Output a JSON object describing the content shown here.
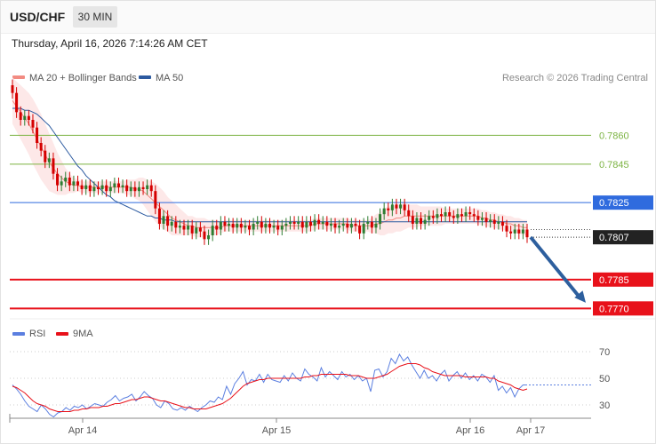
{
  "header": {
    "symbol": "USD/CHF",
    "timeframe": "30 MIN"
  },
  "timestamp": "Thursday, April 16, 2026 7:14:26 AM CET",
  "legend": {
    "items": [
      {
        "label": "MA 20 + Bollinger Bands",
        "color": "#f28b82"
      },
      {
        "label": "MA 50",
        "color": "#2c5aa0"
      }
    ],
    "copyright": "Research © 2026 Trading Central"
  },
  "rsi_legend": {
    "items": [
      {
        "label": "RSI",
        "color": "#5b7fe0"
      },
      {
        "label": "9MA",
        "color": "#e8111a"
      }
    ]
  },
  "chart_data": [
    {
      "type": "candlestick",
      "ylim": [
        0.7766,
        0.7886
      ],
      "x_ticks": [
        "Apr 14",
        "Apr 15",
        "Apr 16",
        "Apr 17"
      ],
      "candles": [
        [
          0.7886,
          0.7882
        ],
        [
          0.7882,
          0.7872
        ],
        [
          0.7872,
          0.7868
        ],
        [
          0.7868,
          0.787
        ],
        [
          0.787,
          0.7868
        ],
        [
          0.7868,
          0.7864
        ],
        [
          0.7864,
          0.7856
        ],
        [
          0.7856,
          0.7852
        ],
        [
          0.7852,
          0.7846
        ],
        [
          0.7846,
          0.7848
        ],
        [
          0.7848,
          0.784
        ],
        [
          0.784,
          0.7834
        ],
        [
          0.7834,
          0.7836
        ],
        [
          0.7836,
          0.7838
        ],
        [
          0.7838,
          0.7834
        ],
        [
          0.7834,
          0.7836
        ],
        [
          0.7836,
          0.7834
        ],
        [
          0.7834,
          0.7832
        ],
        [
          0.7832,
          0.7834
        ],
        [
          0.7834,
          0.7831
        ],
        [
          0.7831,
          0.7833
        ],
        [
          0.7833,
          0.7832
        ],
        [
          0.7832,
          0.7834
        ],
        [
          0.7834,
          0.7831
        ],
        [
          0.7831,
          0.7833
        ],
        [
          0.7833,
          0.7835
        ],
        [
          0.7835,
          0.7833
        ],
        [
          0.7833,
          0.7834
        ],
        [
          0.7834,
          0.7831
        ],
        [
          0.7831,
          0.7833
        ],
        [
          0.7833,
          0.7831
        ],
        [
          0.7831,
          0.7833
        ],
        [
          0.7833,
          0.7832
        ],
        [
          0.7832,
          0.7834
        ],
        [
          0.7834,
          0.7831
        ],
        [
          0.7831,
          0.7822
        ],
        [
          0.7822,
          0.7814
        ],
        [
          0.7814,
          0.7818
        ],
        [
          0.7818,
          0.7813
        ],
        [
          0.7813,
          0.7815
        ],
        [
          0.7815,
          0.7812
        ],
        [
          0.7812,
          0.7813
        ],
        [
          0.7813,
          0.7811
        ],
        [
          0.7811,
          0.7813
        ],
        [
          0.7813,
          0.7809
        ],
        [
          0.7809,
          0.7812
        ],
        [
          0.7812,
          0.781
        ],
        [
          0.781,
          0.7806
        ],
        [
          0.7806,
          0.7808
        ],
        [
          0.7808,
          0.7813
        ],
        [
          0.7813,
          0.7811
        ],
        [
          0.7811,
          0.7815
        ],
        [
          0.7815,
          0.7813
        ],
        [
          0.7813,
          0.7814
        ],
        [
          0.7814,
          0.7812
        ],
        [
          0.7812,
          0.7814
        ],
        [
          0.7814,
          0.7812
        ],
        [
          0.7812,
          0.7813
        ],
        [
          0.7813,
          0.7811
        ],
        [
          0.7811,
          0.7814
        ],
        [
          0.7814,
          0.7815
        ],
        [
          0.7815,
          0.7812
        ],
        [
          0.7812,
          0.7814
        ],
        [
          0.7814,
          0.7812
        ],
        [
          0.7812,
          0.7813
        ],
        [
          0.7813,
          0.7811
        ],
        [
          0.7811,
          0.7813
        ],
        [
          0.7813,
          0.7814
        ],
        [
          0.7814,
          0.7815
        ],
        [
          0.7815,
          0.7814
        ],
        [
          0.7814,
          0.7815
        ],
        [
          0.7815,
          0.7812
        ],
        [
          0.7812,
          0.7815
        ],
        [
          0.7815,
          0.7813
        ],
        [
          0.7813,
          0.7816
        ],
        [
          0.7816,
          0.7814
        ],
        [
          0.7814,
          0.7815
        ],
        [
          0.7815,
          0.7813
        ],
        [
          0.7813,
          0.7814
        ],
        [
          0.7814,
          0.7812
        ],
        [
          0.7812,
          0.7813
        ],
        [
          0.7813,
          0.7814
        ],
        [
          0.7814,
          0.7812
        ],
        [
          0.7812,
          0.7814
        ],
        [
          0.7814,
          0.7813
        ],
        [
          0.7813,
          0.7809
        ],
        [
          0.7809,
          0.7814
        ],
        [
          0.7814,
          0.7815
        ],
        [
          0.7815,
          0.7812
        ],
        [
          0.7812,
          0.7814
        ],
        [
          0.7814,
          0.7819
        ],
        [
          0.7819,
          0.7822
        ],
        [
          0.7822,
          0.7821
        ],
        [
          0.7821,
          0.7824
        ],
        [
          0.7824,
          0.7822
        ],
        [
          0.7822,
          0.7824
        ],
        [
          0.7824,
          0.7821
        ],
        [
          0.7821,
          0.7818
        ],
        [
          0.7818,
          0.7814
        ],
        [
          0.7814,
          0.7817
        ],
        [
          0.7817,
          0.7814
        ],
        [
          0.7814,
          0.7816
        ],
        [
          0.7816,
          0.7818
        ],
        [
          0.7818,
          0.7817
        ],
        [
          0.7817,
          0.7819
        ],
        [
          0.7819,
          0.7818
        ],
        [
          0.7818,
          0.782
        ],
        [
          0.782,
          0.7818
        ],
        [
          0.7818,
          0.7817
        ],
        [
          0.7817,
          0.7819
        ],
        [
          0.7819,
          0.7818
        ],
        [
          0.7818,
          0.782
        ],
        [
          0.782,
          0.7819
        ],
        [
          0.7819,
          0.7818
        ],
        [
          0.7818,
          0.7816
        ],
        [
          0.7816,
          0.7817
        ],
        [
          0.7817,
          0.7815
        ],
        [
          0.7815,
          0.7816
        ],
        [
          0.7816,
          0.7814
        ],
        [
          0.7814,
          0.7815
        ],
        [
          0.7815,
          0.7813
        ],
        [
          0.7813,
          0.781
        ],
        [
          0.781,
          0.7809
        ],
        [
          0.7809,
          0.7811
        ],
        [
          0.7811,
          0.7809
        ],
        [
          0.7809,
          0.7811
        ],
        [
          0.7811,
          0.7807
        ]
      ],
      "ma20": [
        0.7878,
        0.7875,
        0.7872,
        0.7869,
        0.7866,
        0.7862,
        0.7858,
        0.7854,
        0.785,
        0.7846,
        0.7843,
        0.784,
        0.7838,
        0.7836,
        0.7835,
        0.7834,
        0.7834,
        0.7833,
        0.7833,
        0.7833,
        0.7833,
        0.7833,
        0.7833,
        0.7833,
        0.7833,
        0.7833,
        0.7833,
        0.7833,
        0.7833,
        0.7833,
        0.7832,
        0.7832,
        0.7831,
        0.7829,
        0.7827,
        0.7825,
        0.7823,
        0.7821,
        0.7819,
        0.7817,
        0.7816,
        0.7815,
        0.7814,
        0.7813,
        0.7813,
        0.7812,
        0.7812,
        0.7812,
        0.7812,
        0.7812,
        0.7812,
        0.7812,
        0.7813,
        0.7813,
        0.7813,
        0.7813,
        0.7813,
        0.7813,
        0.7813,
        0.7813,
        0.7813,
        0.7813,
        0.7813,
        0.7813,
        0.7813,
        0.7813,
        0.7813,
        0.7813,
        0.7813,
        0.7813,
        0.7813,
        0.7813,
        0.7813,
        0.7813,
        0.7814,
        0.7814,
        0.7814,
        0.7814,
        0.7814,
        0.7814,
        0.7814,
        0.7814,
        0.7814,
        0.7813,
        0.7813,
        0.7813,
        0.7813,
        0.7813,
        0.7813,
        0.7814,
        0.7814,
        0.7815,
        0.7816,
        0.7816,
        0.7817,
        0.7817,
        0.7818,
        0.7818,
        0.7818,
        0.7818,
        0.7818,
        0.7818,
        0.7818,
        0.7818,
        0.7818,
        0.7818,
        0.7818,
        0.7818,
        0.7818,
        0.7818,
        0.7818,
        0.7818,
        0.7818,
        0.7818,
        0.7818,
        0.7817,
        0.7817,
        0.7816,
        0.7816,
        0.7815,
        0.7815,
        0.7814,
        0.7814,
        0.7813,
        0.7813,
        0.7812,
        0.7812
      ],
      "bb_width": [
        0.0012,
        0.0013,
        0.0014,
        0.0015,
        0.0016,
        0.0017,
        0.0017,
        0.0017,
        0.0016,
        0.0015,
        0.0013,
        0.0011,
        0.0009,
        0.0007,
        0.0005,
        0.0004,
        0.0003,
        0.0003,
        0.0003,
        0.0003,
        0.0003,
        0.0003,
        0.0003,
        0.0003,
        0.0003,
        0.0003,
        0.0003,
        0.0003,
        0.0004,
        0.0004,
        0.0005,
        0.0006,
        0.0007,
        0.0008,
        0.0009,
        0.001,
        0.001,
        0.001,
        0.0009,
        0.0009,
        0.0008,
        0.0007,
        0.0006,
        0.0005,
        0.0005,
        0.0005,
        0.0005,
        0.0005,
        0.0004,
        0.0004,
        0.0004,
        0.0003,
        0.0003,
        0.0003,
        0.0003,
        0.0003,
        0.0003,
        0.0003,
        0.0003,
        0.0003,
        0.0003,
        0.0003,
        0.0003,
        0.0003,
        0.0003,
        0.0003,
        0.0003,
        0.0003,
        0.0003,
        0.0003,
        0.0003,
        0.0003,
        0.0003,
        0.0003,
        0.0003,
        0.0003,
        0.0003,
        0.0003,
        0.0003,
        0.0003,
        0.0003,
        0.0003,
        0.0003,
        0.0003,
        0.0003,
        0.0003,
        0.0003,
        0.0003,
        0.0004,
        0.0005,
        0.0006,
        0.0007,
        0.0007,
        0.0007,
        0.0007,
        0.0007,
        0.0007,
        0.0006,
        0.0006,
        0.0006,
        0.0005,
        0.0005,
        0.0005,
        0.0005,
        0.0005,
        0.0005,
        0.0004,
        0.0004,
        0.0004,
        0.0004,
        0.0004,
        0.0004,
        0.0004,
        0.0004,
        0.0004,
        0.0004,
        0.0004,
        0.0004,
        0.0004,
        0.0004,
        0.0004,
        0.0004,
        0.0004,
        0.0004,
        0.0004,
        0.0004,
        0.0004
      ],
      "ma50": [
        0.7874,
        0.7874,
        0.7874,
        0.7873,
        0.7873,
        0.7872,
        0.7871,
        0.7869,
        0.7867,
        0.7865,
        0.7862,
        0.7859,
        0.7856,
        0.7853,
        0.785,
        0.7847,
        0.7844,
        0.7842,
        0.7839,
        0.7837,
        0.7835,
        0.7833,
        0.7831,
        0.7829,
        0.7828,
        0.7826,
        0.7825,
        0.7824,
        0.7823,
        0.7822,
        0.7821,
        0.782,
        0.7819,
        0.7818,
        0.7818,
        0.7817,
        0.7817,
        0.7816,
        0.7816,
        0.7816,
        0.7815,
        0.7815,
        0.7815,
        0.7815,
        0.7815,
        0.7815,
        0.7815,
        0.7815,
        0.7815,
        0.7815,
        0.7815,
        0.7815,
        0.7815,
        0.7815,
        0.7815,
        0.7815,
        0.7815,
        0.7815,
        0.7815,
        0.7815,
        0.7815,
        0.7815,
        0.7815,
        0.7815,
        0.7815,
        0.7815,
        0.7815,
        0.7815,
        0.7815,
        0.7815,
        0.7815,
        0.7815,
        0.7815,
        0.7815,
        0.7815,
        0.7815,
        0.7815,
        0.7815,
        0.7815,
        0.7815,
        0.7815,
        0.7815,
        0.7815,
        0.7815,
        0.7815,
        0.7815,
        0.7815,
        0.7815,
        0.7815,
        0.7815,
        0.7815,
        0.7815,
        0.7815,
        0.7815,
        0.7815,
        0.7815,
        0.7815,
        0.7815,
        0.7815,
        0.7815,
        0.7815,
        0.7815,
        0.7815,
        0.7815,
        0.7815,
        0.7815,
        0.7815,
        0.7815,
        0.7815,
        0.7815,
        0.7815,
        0.7815,
        0.7815,
        0.7815,
        0.7815,
        0.7815,
        0.7815,
        0.7815,
        0.7815,
        0.7815,
        0.7815,
        0.7815,
        0.7815,
        0.7815,
        0.7815,
        0.7815,
        0.7815
      ],
      "levels": [
        {
          "value": 0.786,
          "label": "0.7860",
          "kind": "resistance"
        },
        {
          "value": 0.7845,
          "label": "0.7845",
          "kind": "resistance"
        },
        {
          "value": 0.7825,
          "label": "0.7825",
          "kind": "pivot"
        },
        {
          "value": 0.7807,
          "label": "0.7807",
          "kind": "last"
        },
        {
          "value": 0.7785,
          "label": "0.7785",
          "kind": "support"
        },
        {
          "value": 0.777,
          "label": "0.7770",
          "kind": "support"
        }
      ],
      "forecast_arrow": {
        "from": 0.7807,
        "to": 0.7773,
        "direction": "down"
      },
      "colors": {
        "up": "#2e7d32",
        "down": "#d50000",
        "pivot": "#2f6bde",
        "support": "#e8111a",
        "resistance": "#7cb342",
        "ma20": "#f28b82",
        "ma50": "#2c5aa0",
        "arrow": "#2d5f9e"
      }
    },
    {
      "type": "line",
      "title": "RSI",
      "ylim": [
        20,
        80
      ],
      "y_ticks": [
        70,
        50,
        30
      ],
      "series": [
        {
          "name": "RSI",
          "values": [
            45,
            42,
            38,
            33,
            29,
            27,
            25,
            30,
            27,
            23,
            21,
            24,
            25,
            28,
            26,
            29,
            28,
            30,
            27,
            29,
            31,
            30,
            29,
            32,
            34,
            37,
            33,
            35,
            36,
            38,
            33,
            36,
            40,
            37,
            35,
            30,
            28,
            33,
            31,
            27,
            26,
            28,
            26,
            29,
            27,
            25,
            28,
            30,
            33,
            32,
            36,
            34,
            44,
            38,
            46,
            50,
            55,
            45,
            49,
            48,
            53,
            47,
            53,
            49,
            48,
            47,
            52,
            48,
            54,
            50,
            48,
            57,
            53,
            51,
            48,
            58,
            51,
            55,
            52,
            49,
            55,
            51,
            53,
            49,
            52,
            48,
            50,
            40,
            56,
            57,
            51,
            55,
            65,
            61,
            68,
            63,
            66,
            60,
            55,
            50,
            56,
            50,
            52,
            48,
            53,
            56,
            48,
            52,
            55,
            50,
            54,
            49,
            52,
            48,
            53,
            51,
            47,
            52,
            41,
            44,
            39,
            43,
            36,
            42,
            45,
            45
          ]
        },
        {
          "name": "9MA",
          "values": [
            44,
            43,
            41,
            39,
            36,
            33,
            31,
            30,
            29,
            27,
            26,
            25,
            25,
            25,
            25,
            26,
            26,
            27,
            27,
            28,
            28,
            28,
            29,
            29,
            30,
            31,
            31,
            32,
            33,
            34,
            34,
            35,
            36,
            36,
            35,
            34,
            33,
            33,
            32,
            31,
            30,
            29,
            28,
            28,
            27,
            27,
            27,
            27,
            28,
            29,
            30,
            31,
            33,
            35,
            38,
            41,
            44,
            46,
            47,
            48,
            49,
            49,
            50,
            50,
            50,
            50,
            50,
            50,
            50,
            50,
            50,
            51,
            51,
            52,
            52,
            53,
            53,
            53,
            53,
            53,
            53,
            53,
            52,
            52,
            52,
            51,
            50,
            50,
            50,
            51,
            52,
            53,
            55,
            57,
            59,
            60,
            61,
            61,
            61,
            60,
            58,
            57,
            55,
            54,
            53,
            52,
            52,
            52,
            52,
            52,
            51,
            51,
            51,
            51,
            51,
            51,
            50,
            50,
            48,
            47,
            46,
            45,
            43,
            42,
            41,
            42
          ]
        }
      ]
    }
  ]
}
